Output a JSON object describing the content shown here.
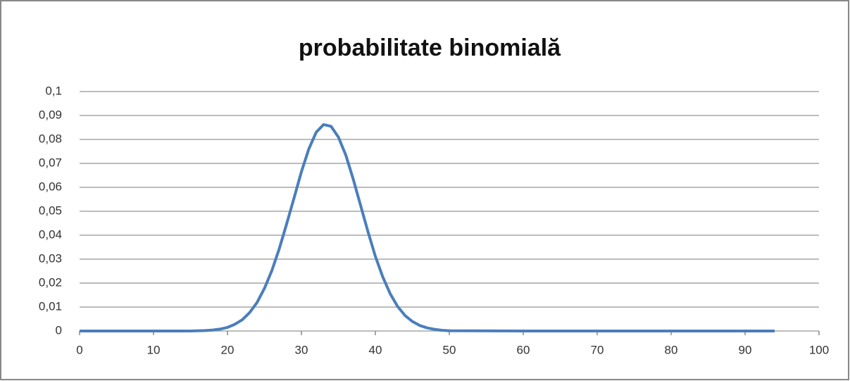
{
  "chart_data": {
    "type": "line",
    "title": "probabilitate binomială",
    "x": [
      0,
      5,
      10,
      15,
      17,
      18,
      19,
      20,
      21,
      22,
      23,
      24,
      25,
      26,
      27,
      28,
      29,
      30,
      31,
      32,
      33,
      34,
      35,
      36,
      37,
      38,
      39,
      40,
      41,
      42,
      43,
      44,
      45,
      46,
      47,
      48,
      49,
      50,
      60,
      70,
      80,
      90,
      94
    ],
    "series": [
      {
        "name": "probabilitate",
        "color": "#4a7ebb",
        "values": [
          0,
          0,
          0,
          0,
          0.0002,
          0.0004,
          0.0008,
          0.0015,
          0.0028,
          0.0047,
          0.0077,
          0.0119,
          0.0178,
          0.0252,
          0.0343,
          0.0447,
          0.0555,
          0.0665,
          0.076,
          0.083,
          0.0862,
          0.0855,
          0.081,
          0.0735,
          0.0635,
          0.0525,
          0.0415,
          0.0312,
          0.0226,
          0.0156,
          0.0103,
          0.0065,
          0.004,
          0.0023,
          0.0013,
          0.0007,
          0.0003,
          0.0001,
          0,
          0,
          0,
          0,
          0
        ]
      }
    ],
    "xlim": [
      0,
      100
    ],
    "xticks": [
      0,
      10,
      20,
      30,
      40,
      50,
      60,
      70,
      80,
      90,
      100
    ],
    "ylim": [
      0,
      0.1
    ],
    "yticks": [
      0,
      {
        "value": 0.01,
        "label": "0,01"
      },
      {
        "value": 0.02,
        "label": "0,02"
      },
      {
        "value": 0.03,
        "label": "0,03"
      },
      {
        "value": 0.04,
        "label": "0,04"
      },
      {
        "value": 0.05,
        "label": "0,05"
      },
      {
        "value": 0.06,
        "label": "0,06"
      },
      {
        "value": 0.07,
        "label": "0,07"
      },
      {
        "value": 0.08,
        "label": "0,08"
      },
      {
        "value": 0.09,
        "label": "0,09"
      },
      {
        "value": 0.1,
        "label": "0,1"
      }
    ],
    "grid": true
  }
}
